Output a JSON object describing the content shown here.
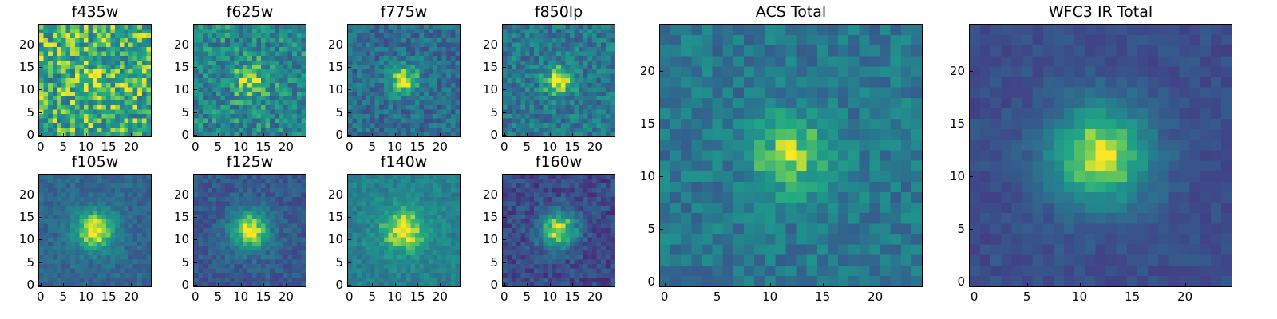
{
  "colormap": "viridis",
  "chart_data": [
    {
      "type": "heatmap",
      "title": "f435w",
      "size": 25,
      "xticks": [
        0,
        5,
        10,
        15,
        20
      ],
      "yticks": [
        0,
        5,
        10,
        15,
        20
      ],
      "peak": [
        12,
        12
      ],
      "sigma": 2.5,
      "signal": 0.15,
      "noise": 0.55,
      "base": 0.72,
      "seed": 11,
      "colormap": "viridis"
    },
    {
      "type": "heatmap",
      "title": "f625w",
      "size": 25,
      "xticks": [
        0,
        5,
        10,
        15,
        20
      ],
      "yticks": [
        0,
        5,
        10,
        15,
        20
      ],
      "peak": [
        12,
        12
      ],
      "sigma": 2.5,
      "signal": 0.35,
      "noise": 0.45,
      "base": 0.58,
      "seed": 23,
      "colormap": "viridis"
    },
    {
      "type": "heatmap",
      "title": "f775w",
      "size": 25,
      "xticks": [
        0,
        5,
        10,
        15,
        20
      ],
      "yticks": [
        0,
        5,
        10,
        15,
        20
      ],
      "peak": [
        12,
        12
      ],
      "sigma": 2.3,
      "signal": 0.55,
      "noise": 0.35,
      "base": 0.45,
      "seed": 37,
      "colormap": "viridis"
    },
    {
      "type": "heatmap",
      "title": "f850lp",
      "size": 25,
      "xticks": [
        0,
        5,
        10,
        15,
        20
      ],
      "yticks": [
        0,
        5,
        10,
        15,
        20
      ],
      "peak": [
        12,
        12
      ],
      "sigma": 2.3,
      "signal": 0.5,
      "noise": 0.38,
      "base": 0.5,
      "seed": 41,
      "colormap": "viridis"
    },
    {
      "type": "heatmap",
      "title": "f105w",
      "size": 25,
      "xticks": [
        0,
        5,
        10,
        15,
        20
      ],
      "yticks": [
        0,
        5,
        10,
        15,
        20
      ],
      "peak": [
        12,
        12
      ],
      "sigma": 3.2,
      "signal": 0.6,
      "noise": 0.2,
      "base": 0.42,
      "seed": 53,
      "colormap": "viridis"
    },
    {
      "type": "heatmap",
      "title": "f125w",
      "size": 25,
      "xticks": [
        0,
        5,
        10,
        15,
        20
      ],
      "yticks": [
        0,
        5,
        10,
        15,
        20
      ],
      "peak": [
        12,
        12
      ],
      "sigma": 3.2,
      "signal": 0.65,
      "noise": 0.22,
      "base": 0.35,
      "seed": 67,
      "colormap": "viridis"
    },
    {
      "type": "heatmap",
      "title": "f140w",
      "size": 25,
      "xticks": [
        0,
        5,
        10,
        15,
        20
      ],
      "yticks": [
        0,
        5,
        10,
        15,
        20
      ],
      "peak": [
        12,
        12
      ],
      "sigma": 3.5,
      "signal": 0.45,
      "noise": 0.22,
      "base": 0.55,
      "seed": 79,
      "colormap": "viridis"
    },
    {
      "type": "heatmap",
      "title": "f160w",
      "size": 25,
      "xticks": [
        0,
        5,
        10,
        15,
        20
      ],
      "yticks": [
        0,
        5,
        10,
        15,
        20
      ],
      "peak": [
        12,
        12
      ],
      "sigma": 3.0,
      "signal": 0.7,
      "noise": 0.28,
      "base": 0.28,
      "seed": 83,
      "colormap": "viridis"
    },
    {
      "type": "heatmap",
      "title": "ACS Total",
      "size": 25,
      "xticks": [
        0,
        5,
        10,
        15,
        20
      ],
      "yticks": [
        0,
        5,
        10,
        15,
        20
      ],
      "peak": [
        12,
        12
      ],
      "sigma": 2.6,
      "signal": 0.42,
      "noise": 0.28,
      "base": 0.5,
      "seed": 97,
      "colormap": "viridis"
    },
    {
      "type": "heatmap",
      "title": "WFC3 IR Total",
      "size": 25,
      "xticks": [
        0,
        5,
        10,
        15,
        20
      ],
      "yticks": [
        0,
        5,
        10,
        15,
        20
      ],
      "peak": [
        12,
        12
      ],
      "sigma": 3.4,
      "signal": 0.68,
      "noise": 0.14,
      "base": 0.3,
      "seed": 101,
      "colormap": "viridis"
    }
  ]
}
